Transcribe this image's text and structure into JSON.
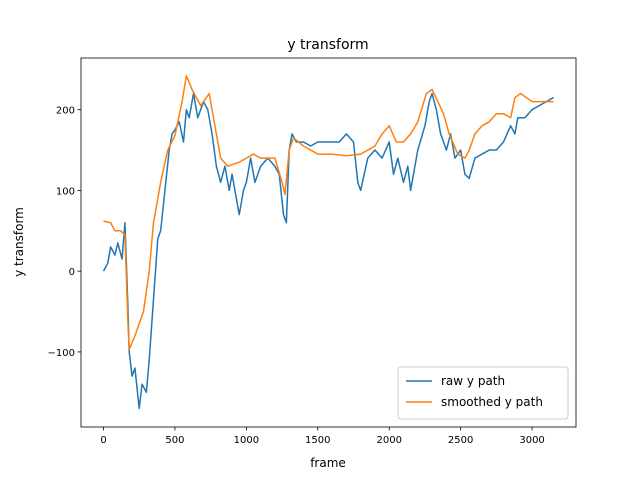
{
  "chart_data": {
    "type": "line",
    "title": "y transform",
    "x_label": "frame",
    "y_label": "y transform",
    "xlim": [
      -157.5,
      3307.5
    ],
    "xticks": [
      0,
      500,
      1000,
      1500,
      2000,
      2500,
      3000
    ],
    "ylim": [
      -193,
      264
    ],
    "yticks": [
      {
        "value": -100,
        "label": "−100"
      },
      0,
      100,
      200
    ],
    "legend": "lower right",
    "series": [
      {
        "name": "raw y path",
        "color": "#1f77b4",
        "x": [
          0,
          30,
          50,
          80,
          100,
          130,
          150,
          170,
          180,
          200,
          220,
          250,
          270,
          300,
          320,
          340,
          360,
          380,
          400,
          430,
          460,
          480,
          500,
          530,
          560,
          580,
          600,
          630,
          660,
          700,
          730,
          760,
          790,
          820,
          850,
          880,
          900,
          950,
          980,
          1000,
          1030,
          1060,
          1100,
          1150,
          1200,
          1230,
          1260,
          1280,
          1300,
          1320,
          1350,
          1400,
          1450,
          1500,
          1550,
          1600,
          1650,
          1700,
          1750,
          1780,
          1800,
          1850,
          1900,
          1950,
          2000,
          2030,
          2060,
          2100,
          2130,
          2150,
          2200,
          2250,
          2280,
          2300,
          2330,
          2360,
          2400,
          2430,
          2460,
          2500,
          2530,
          2560,
          2600,
          2650,
          2700,
          2750,
          2800,
          2850,
          2880,
          2900,
          2950,
          3000,
          3050,
          3100,
          3150
        ],
        "values": [
          0,
          10,
          30,
          20,
          35,
          15,
          60,
          -40,
          -100,
          -130,
          -120,
          -170,
          -140,
          -150,
          -110,
          -60,
          -10,
          40,
          50,
          100,
          150,
          170,
          175,
          185,
          160,
          200,
          190,
          220,
          190,
          210,
          200,
          170,
          130,
          110,
          130,
          100,
          120,
          70,
          100,
          110,
          140,
          110,
          130,
          140,
          130,
          120,
          70,
          60,
          150,
          170,
          160,
          160,
          155,
          160,
          160,
          160,
          160,
          170,
          160,
          110,
          100,
          140,
          150,
          140,
          160,
          120,
          140,
          110,
          130,
          100,
          150,
          180,
          210,
          220,
          200,
          170,
          150,
          170,
          140,
          150,
          120,
          115,
          140,
          145,
          150,
          150,
          160,
          180,
          170,
          190,
          190,
          200,
          205,
          210,
          215
        ]
      },
      {
        "name": "smoothed y path",
        "color": "#ff7f0e",
        "x": [
          0,
          50,
          80,
          120,
          150,
          170,
          180,
          220,
          280,
          320,
          350,
          400,
          450,
          500,
          550,
          580,
          620,
          680,
          740,
          780,
          820,
          870,
          950,
          1000,
          1050,
          1100,
          1200,
          1250,
          1270,
          1300,
          1330,
          1400,
          1450,
          1500,
          1600,
          1700,
          1800,
          1850,
          1900,
          1950,
          2000,
          2050,
          2100,
          2150,
          2200,
          2260,
          2300,
          2340,
          2380,
          2420,
          2480,
          2530,
          2560,
          2600,
          2650,
          2700,
          2750,
          2800,
          2850,
          2880,
          2920,
          2960,
          3000,
          3050,
          3100,
          3150
        ],
        "values": [
          62,
          60,
          50,
          50,
          45,
          -60,
          -97,
          -80,
          -50,
          0,
          60,
          110,
          150,
          168,
          210,
          242,
          225,
          205,
          220,
          180,
          140,
          130,
          135,
          140,
          145,
          140,
          140,
          110,
          95,
          150,
          165,
          155,
          150,
          145,
          145,
          143,
          145,
          150,
          155,
          170,
          180,
          160,
          160,
          170,
          185,
          220,
          225,
          210,
          195,
          170,
          145,
          140,
          150,
          170,
          180,
          185,
          195,
          195,
          190,
          215,
          220,
          215,
          210,
          210,
          210,
          210
        ]
      }
    ]
  }
}
